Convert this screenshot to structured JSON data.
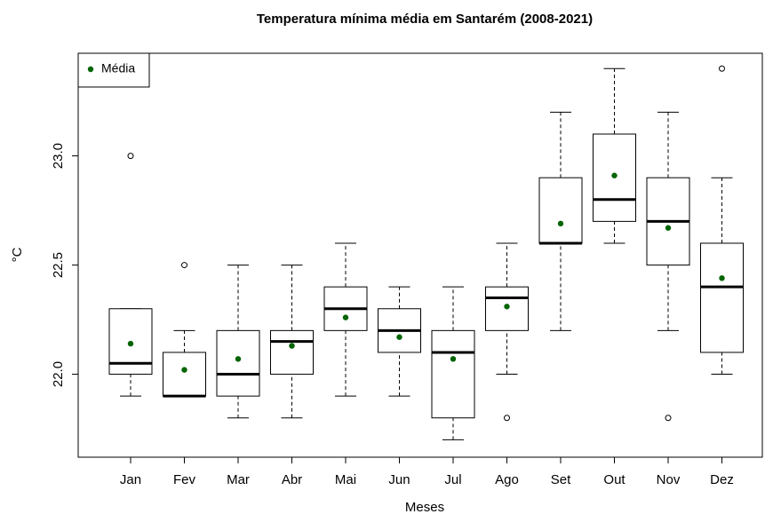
{
  "chart_data": {
    "type": "box",
    "title": "Temperatura mínima média em Santarém (2008-2021)",
    "x_label": "Meses",
    "y_label": "°C",
    "categories": [
      "Jan",
      "Fev",
      "Mar",
      "Abr",
      "Mai",
      "Jun",
      "Jul",
      "Ago",
      "Set",
      "Out",
      "Nov",
      "Dez"
    ],
    "boxes": [
      {
        "min": 21.9,
        "q1": 22.0,
        "median": 22.05,
        "q3": 22.3,
        "max": 22.3
      },
      {
        "min": 21.9,
        "q1": 21.9,
        "median": 21.9,
        "q3": 22.1,
        "max": 22.2
      },
      {
        "min": 21.8,
        "q1": 21.9,
        "median": 22.0,
        "q3": 22.2,
        "max": 22.5
      },
      {
        "min": 21.8,
        "q1": 22.0,
        "median": 22.15,
        "q3": 22.2,
        "max": 22.5
      },
      {
        "min": 21.9,
        "q1": 22.2,
        "median": 22.3,
        "q3": 22.4,
        "max": 22.6
      },
      {
        "min": 21.9,
        "q1": 22.1,
        "median": 22.2,
        "q3": 22.3,
        "max": 22.4
      },
      {
        "min": 21.7,
        "q1": 21.8,
        "median": 22.1,
        "q3": 22.2,
        "max": 22.4
      },
      {
        "min": 22.0,
        "q1": 22.2,
        "median": 22.35,
        "q3": 22.4,
        "max": 22.6
      },
      {
        "min": 22.2,
        "q1": 22.6,
        "median": 22.6,
        "q3": 22.9,
        "max": 23.2
      },
      {
        "min": 22.6,
        "q1": 22.7,
        "median": 22.8,
        "q3": 23.1,
        "max": 23.4
      },
      {
        "min": 22.2,
        "q1": 22.5,
        "median": 22.7,
        "q3": 22.9,
        "max": 23.2
      },
      {
        "min": 22.0,
        "q1": 22.1,
        "median": 22.4,
        "q3": 22.6,
        "max": 22.9
      }
    ],
    "outliers": [
      [
        23.0
      ],
      [
        22.5
      ],
      [],
      [],
      [],
      [],
      [],
      [
        21.8
      ],
      [],
      [],
      [
        21.8
      ],
      [
        23.4
      ]
    ],
    "series": [
      {
        "name": "Média",
        "color": "#006400",
        "values": [
          22.14,
          22.02,
          22.07,
          22.13,
          22.26,
          22.17,
          22.07,
          22.31,
          22.69,
          22.91,
          22.67,
          22.44
        ]
      }
    ],
    "ylim": [
      21.62,
      23.47
    ],
    "yticks": [
      {
        "value": 22.0,
        "label": "22.0"
      },
      22.5,
      {
        "value": 23.0,
        "label": "23.0"
      }
    ],
    "legend": "top-left"
  }
}
